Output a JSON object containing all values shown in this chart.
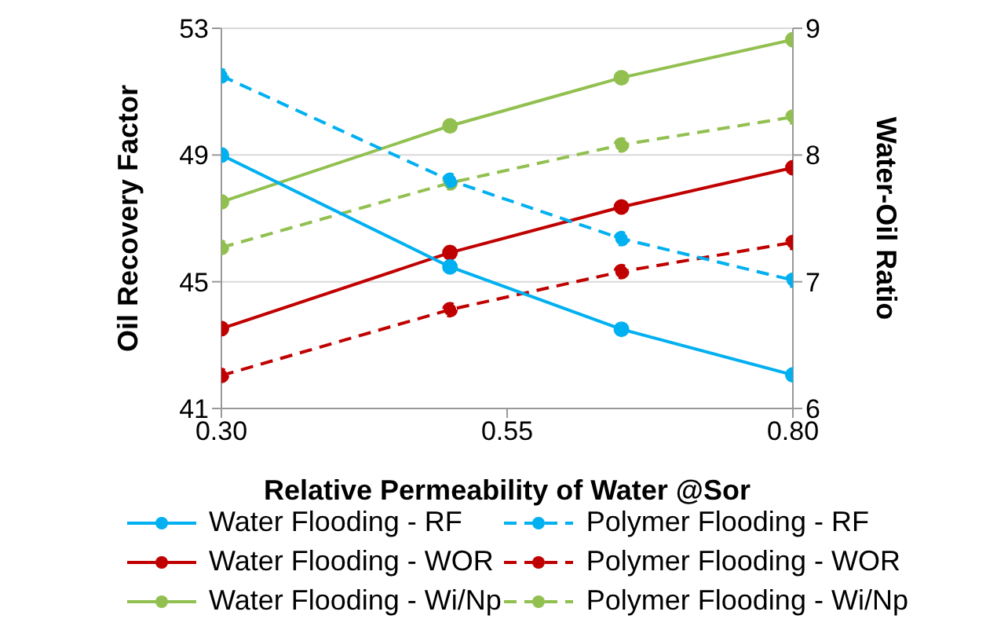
{
  "chart_data": {
    "type": "line",
    "xlabel": "Relative Permeability of Water @Sor",
    "ylabel": "Oil Recovery Factor",
    "y2label": "Water-Oil Ratio",
    "x": [
      0.3,
      0.5,
      0.65,
      0.8
    ],
    "xlim": [
      0.3,
      0.8
    ],
    "xticks": [
      {
        "value": 0.3,
        "label": "0.30"
      },
      0.55,
      {
        "value": 0.8,
        "label": "0.80"
      }
    ],
    "ylim": [
      41,
      53
    ],
    "yticks": [
      41,
      45,
      49,
      53
    ],
    "y2lim": [
      6,
      9
    ],
    "y2ticks": [
      6,
      7,
      8,
      9
    ],
    "grid": "y",
    "legend": "bottom",
    "marker": "circle",
    "series": [
      {
        "name": "Water Flooding - RF",
        "color": "#00b0f0",
        "values": [
          49.0,
          45.47,
          43.5,
          42.06
        ],
        "line_style": "solid"
      },
      {
        "name": "Polymer Flooding - RF",
        "color": "#00b0f0",
        "values": [
          51.5,
          48.2,
          46.36,
          45.05
        ],
        "line_style": "dashed"
      },
      {
        "name": "Water Flooding - WOR",
        "color": "#c00000",
        "values": [
          6.63,
          7.23,
          7.59,
          7.9
        ],
        "axis": "y2",
        "line_style": "solid"
      },
      {
        "name": "Polymer Flooding - WOR",
        "color": "#c00000",
        "values": [
          6.26,
          6.78,
          7.08,
          7.31
        ],
        "axis": "y2",
        "line_style": "dashed"
      },
      {
        "name": "Water Flooding - Wi/Np",
        "color": "#92c050",
        "values": [
          7.63,
          8.23,
          8.61,
          8.91
        ],
        "axis": "y2",
        "line_style": "solid"
      },
      {
        "name": "Polymer Flooding - Wi/Np",
        "color": "#92c050",
        "values": [
          7.27,
          7.78,
          8.08,
          8.3
        ],
        "axis": "y2",
        "line_style": "dashed"
      }
    ]
  }
}
